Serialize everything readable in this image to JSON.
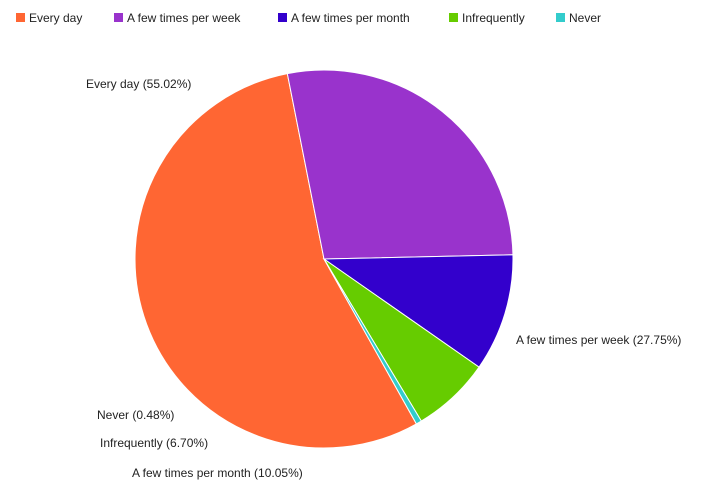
{
  "chart_data": {
    "type": "pie",
    "legend_position": "top-left",
    "categories": [
      "Every day",
      "A few times per week",
      "A few times per month",
      "Infrequently",
      "Never"
    ],
    "values": [
      55.02,
      27.75,
      10.05,
      6.7,
      0.48
    ],
    "labels": [
      "Every day (55.02%)",
      "A few times per week (27.75%)",
      "A few times per month (10.05%)",
      "Infrequently (6.70%)",
      "Never (0.48%)"
    ],
    "colors": [
      "#ff6633",
      "#9933cc",
      "#3300cc",
      "#66cc00",
      "#33cccc"
    ]
  }
}
